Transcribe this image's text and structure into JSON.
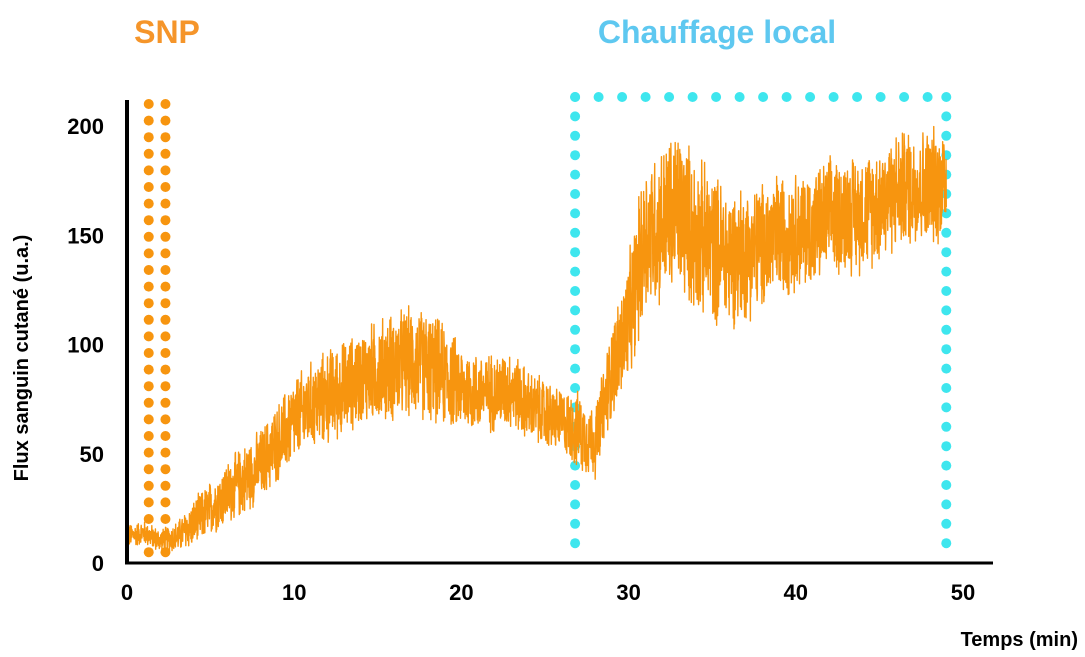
{
  "chart_data": {
    "type": "line",
    "xlabel": "Temps (min)",
    "ylabel": "Flux sanguin cutané (u.a.)",
    "xlim": [
      0,
      52
    ],
    "ylim": [
      0,
      210
    ],
    "xticks": [
      "0",
      "10",
      "20",
      "30",
      "40",
      "50"
    ],
    "xtick_values": [
      0,
      10,
      20,
      30,
      40,
      50
    ],
    "yticks": [
      "0",
      "50",
      "100",
      "150",
      "200"
    ],
    "ytick_values": [
      0,
      50,
      100,
      150,
      200
    ],
    "grid": false,
    "series": [
      {
        "color": "#f7950f",
        "x": [
          0,
          1,
          2,
          3,
          4,
          5,
          6,
          7,
          8,
          9,
          10,
          11,
          12,
          13,
          14,
          15,
          16,
          17,
          18,
          19,
          20,
          21,
          22,
          23,
          24,
          25,
          26,
          27,
          28,
          29,
          30,
          31,
          32,
          33,
          34,
          35,
          36,
          37,
          38,
          39,
          40,
          41,
          42,
          43,
          44,
          45,
          46,
          47,
          48,
          49
        ],
        "y": [
          12,
          14,
          10,
          12,
          18,
          25,
          32,
          38,
          45,
          55,
          65,
          72,
          76,
          80,
          85,
          88,
          90,
          92,
          90,
          86,
          80,
          78,
          78,
          80,
          72,
          68,
          65,
          60,
          55,
          88,
          110,
          150,
          155,
          162,
          150,
          145,
          140,
          142,
          145,
          150,
          152,
          152,
          158,
          160,
          160,
          165,
          170,
          172,
          172,
          175
        ],
        "noise": [
          6,
          6,
          6,
          8,
          12,
          14,
          16,
          18,
          18,
          20,
          22,
          22,
          24,
          24,
          24,
          26,
          28,
          28,
          28,
          26,
          22,
          20,
          20,
          20,
          18,
          18,
          16,
          20,
          18,
          24,
          32,
          40,
          40,
          42,
          40,
          38,
          36,
          34,
          32,
          32,
          30,
          30,
          30,
          30,
          30,
          30,
          30,
          30,
          30,
          30
        ]
      }
    ],
    "annotations": [
      {
        "text": "SNP",
        "color": "#f7950f",
        "x_start": 1.3,
        "x_end": 2.3,
        "y_top": 207
      },
      {
        "text": "Chauffage local",
        "color": "#4ed9e8",
        "x_start": 26.8,
        "x_end": 49,
        "y_top": 210
      }
    ]
  },
  "colors": {
    "orange": "#f7950f",
    "label_orange": "#f5952a",
    "cyan_dots": "#3ee6ee",
    "cyan_text": "#5ec8f0",
    "axis": "#000000"
  }
}
